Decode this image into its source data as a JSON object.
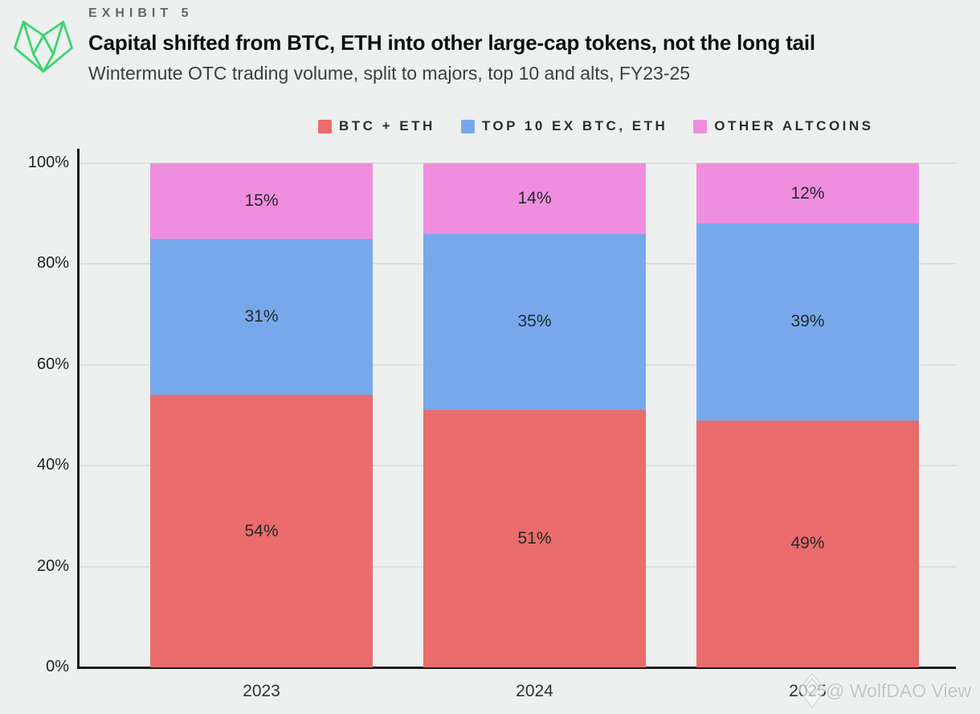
{
  "header": {
    "exhibit": "EXHIBIT 5",
    "title": "Capital shifted from BTC, ETH into other large-cap tokens, not the long tail",
    "subtitle": "Wintermute OTC trading volume, split to majors, top 10 and alts, FY23-25"
  },
  "colors": {
    "btc_eth": "#ea6c6c",
    "top10": "#78a8ec",
    "other_altcoins": "#ef8ede",
    "background": "#edf0ee",
    "axis": "#1a1d1b",
    "grid": "#dcdfdd",
    "logo_green": "#3dd46f"
  },
  "legend": [
    {
      "label": "BTC + ETH",
      "color": "#ea6c6c"
    },
    {
      "label": "TOP 10 EX BTC, ETH",
      "color": "#78a8ec"
    },
    {
      "label": "OTHER ALTCOINS",
      "color": "#ef8ede"
    }
  ],
  "chart_data": {
    "type": "bar",
    "stacked": true,
    "categories": [
      "2023",
      "2024",
      "2025"
    ],
    "series": [
      {
        "name": "BTC + ETH",
        "color": "#ea6c6c",
        "values": [
          54,
          51,
          49
        ]
      },
      {
        "name": "TOP 10 EX BTC, ETH",
        "color": "#78a8ec",
        "values": [
          31,
          35,
          39
        ]
      },
      {
        "name": "OTHER ALTCOINS",
        "color": "#ef8ede",
        "values": [
          15,
          14,
          12
        ]
      }
    ],
    "value_suffix": "%",
    "ylim": [
      0,
      100
    ],
    "yticks": [
      "0%",
      "20%",
      "40%",
      "60%",
      "80%",
      "100%"
    ],
    "grid": true,
    "legend_position": "top"
  },
  "watermark": {
    "text": "@ WolfDAO View",
    "icon": "diamond-logo"
  }
}
